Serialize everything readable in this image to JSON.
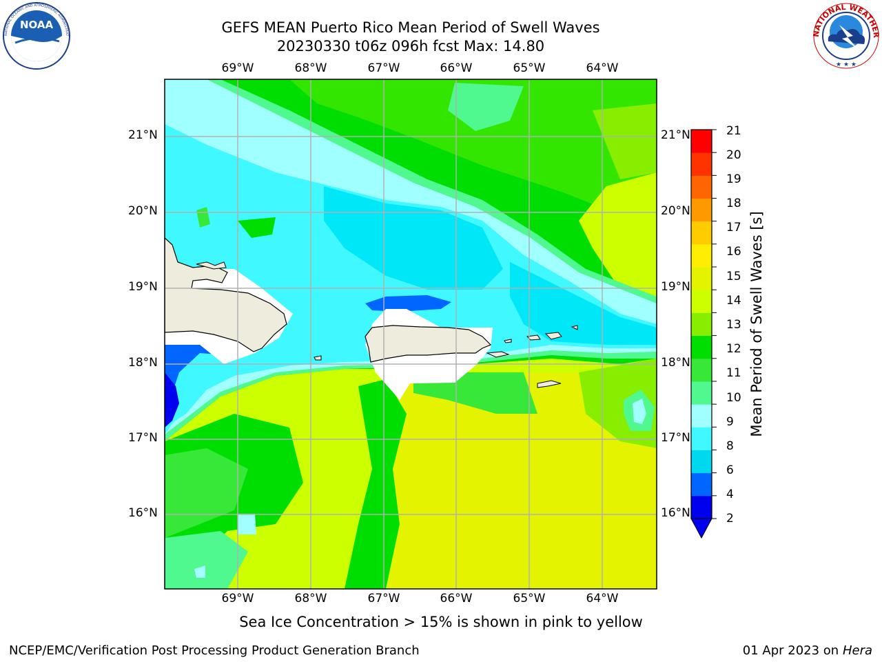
{
  "header": {
    "title_line1": "GEFS MEAN Puerto Rico Mean Period of Swell Waves",
    "title_line2": "20230330 t06z 096h fcst   Max: 14.80"
  },
  "logos": {
    "left": {
      "name": "NOAA",
      "text": "NOAA",
      "ring_text": "NATIONAL OCEANIC AND ATMOSPHERIC ADMINISTRATION · U.S. DEPARTMENT OF COMMERCE"
    },
    "right": {
      "name": "National Weather Service",
      "ring_text": "NATIONAL WEATHER SERVICE"
    }
  },
  "map": {
    "lon_labels": [
      "69°W",
      "68°W",
      "67°W",
      "66°W",
      "65°W",
      "64°W"
    ],
    "lat_labels": [
      "21°N",
      "20°N",
      "19°N",
      "18°N",
      "17°N",
      "16°N"
    ],
    "land_color": "#eeecdc",
    "grid_color": "#b0b0b0"
  },
  "colorbar": {
    "label": "Mean Period of Swell Waves [s]",
    "ticks": [
      "21",
      "20",
      "19",
      "18",
      "17",
      "16",
      "15",
      "14",
      "13",
      "12",
      "11",
      "10",
      "9",
      "8",
      "6",
      "4",
      "2"
    ],
    "colors_bottom_to_top": [
      "#0000ee",
      "#0066ff",
      "#00d8f0",
      "#40f8ff",
      "#a0ffff",
      "#50f890",
      "#38e838",
      "#00dd00",
      "#88ee00",
      "#ccff00",
      "#e4f400",
      "#ffee00",
      "#ffcc00",
      "#ff9900",
      "#ff6600",
      "#ff3300",
      "#ff0000"
    ],
    "extend_color": "#0000ee"
  },
  "footer": {
    "note": "Sea Ice Concentration > 15% is shown in pink to yellow",
    "org": "NCEP/EMC/Verification Post Processing Product Generation Branch",
    "date": "01 Apr 2023 on ",
    "machine": "Hera"
  }
}
